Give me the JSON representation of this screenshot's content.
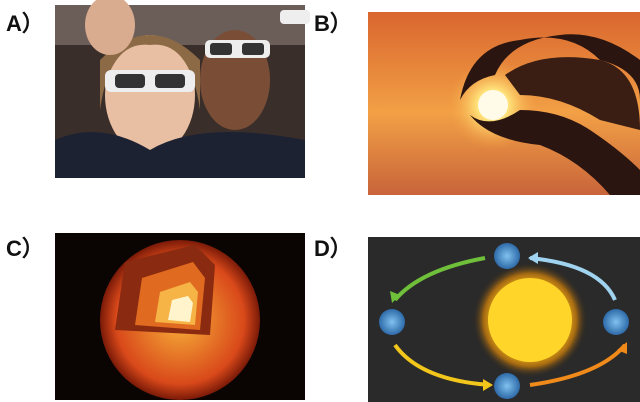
{
  "panels": [
    {
      "label": "A）"
    },
    {
      "label": "B）"
    },
    {
      "label": "C）"
    },
    {
      "label": "D）"
    }
  ]
}
